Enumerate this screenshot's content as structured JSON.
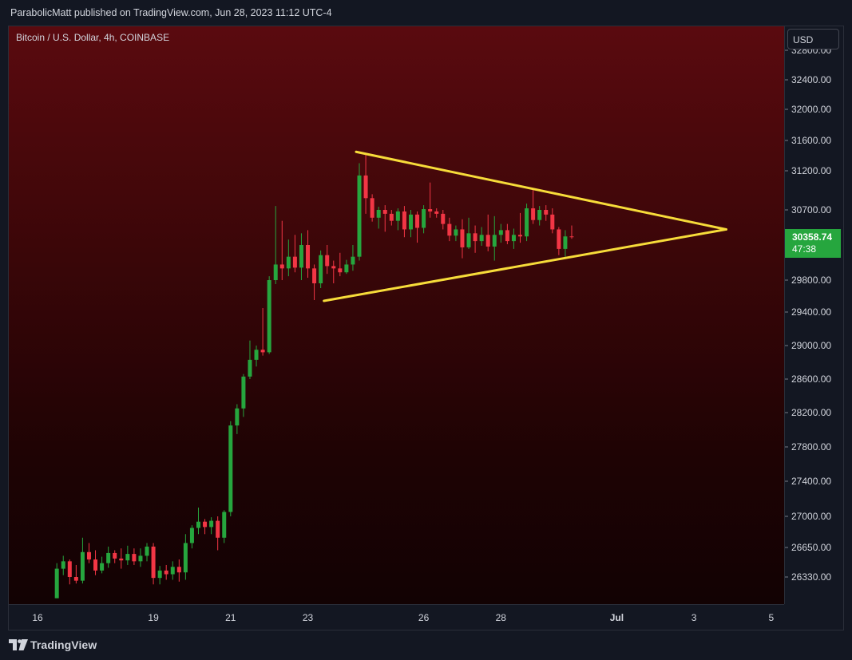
{
  "header": {
    "publish_text": "ParabolicMatt published on TradingView.com, Jun 28, 2023 11:12 UTC-4"
  },
  "chart": {
    "symbol_title": "Bitcoin / U.S. Dollar, 4h, COINBASE"
  },
  "price_axis": {
    "currency": "USD",
    "last_price": "30358.74",
    "countdown": "47:38",
    "last_price_color": "#26a63e"
  },
  "footer": {
    "brand": "TradingView",
    "logo_icon": "tradingview-logo-icon"
  },
  "colors": {
    "up": "#26a63e",
    "down": "#f23645",
    "drawing": "#f7dc3a",
    "background_top": "#5a0a0f"
  },
  "chart_data": {
    "type": "candlestick",
    "title": "Bitcoin / U.S. Dollar, 4h, COINBASE",
    "y_ticks": [
      26330,
      26650,
      27000,
      27400,
      27800,
      28200,
      28600,
      29000,
      29400,
      29800,
      30700,
      31200,
      31600,
      32000,
      32400,
      32800
    ],
    "x_ticks": [
      {
        "label": "16",
        "t": 0
      },
      {
        "label": "19",
        "t": 18
      },
      {
        "label": "21",
        "t": 30
      },
      {
        "label": "23",
        "t": 42
      },
      {
        "label": "26",
        "t": 60
      },
      {
        "label": "28",
        "t": 72
      },
      {
        "label": "Jul",
        "t": 90
      },
      {
        "label": "3",
        "t": 102
      },
      {
        "label": "5",
        "t": 114
      }
    ],
    "candles": [
      {
        "t": 3,
        "o": 26100,
        "h": 26480,
        "l": 26100,
        "c": 26420
      },
      {
        "t": 4,
        "o": 26420,
        "h": 26560,
        "l": 26350,
        "c": 26500
      },
      {
        "t": 5,
        "o": 26500,
        "h": 26520,
        "l": 26250,
        "c": 26330
      },
      {
        "t": 6,
        "o": 26330,
        "h": 26460,
        "l": 26260,
        "c": 26290
      },
      {
        "t": 7,
        "o": 26290,
        "h": 26760,
        "l": 26260,
        "c": 26600
      },
      {
        "t": 8,
        "o": 26600,
        "h": 26700,
        "l": 26480,
        "c": 26520
      },
      {
        "t": 9,
        "o": 26520,
        "h": 26620,
        "l": 26350,
        "c": 26400
      },
      {
        "t": 10,
        "o": 26400,
        "h": 26550,
        "l": 26370,
        "c": 26480
      },
      {
        "t": 11,
        "o": 26480,
        "h": 26660,
        "l": 26430,
        "c": 26590
      },
      {
        "t": 12,
        "o": 26590,
        "h": 26620,
        "l": 26480,
        "c": 26530
      },
      {
        "t": 13,
        "o": 26530,
        "h": 26640,
        "l": 26420,
        "c": 26510
      },
      {
        "t": 14,
        "o": 26510,
        "h": 26670,
        "l": 26460,
        "c": 26580
      },
      {
        "t": 15,
        "o": 26580,
        "h": 26640,
        "l": 26460,
        "c": 26500
      },
      {
        "t": 16,
        "o": 26500,
        "h": 26640,
        "l": 26440,
        "c": 26560
      },
      {
        "t": 17,
        "o": 26560,
        "h": 26700,
        "l": 26500,
        "c": 26660
      },
      {
        "t": 18,
        "o": 26660,
        "h": 26700,
        "l": 26250,
        "c": 26320
      },
      {
        "t": 19,
        "o": 26320,
        "h": 26450,
        "l": 26250,
        "c": 26400
      },
      {
        "t": 20,
        "o": 26400,
        "h": 26460,
        "l": 26300,
        "c": 26360
      },
      {
        "t": 21,
        "o": 26360,
        "h": 26500,
        "l": 26300,
        "c": 26440
      },
      {
        "t": 22,
        "o": 26440,
        "h": 26520,
        "l": 26280,
        "c": 26380
      },
      {
        "t": 23,
        "o": 26380,
        "h": 26800,
        "l": 26300,
        "c": 26700
      },
      {
        "t": 24,
        "o": 26700,
        "h": 26900,
        "l": 26640,
        "c": 26870
      },
      {
        "t": 25,
        "o": 26870,
        "h": 27100,
        "l": 26800,
        "c": 26940
      },
      {
        "t": 26,
        "o": 26940,
        "h": 26970,
        "l": 26800,
        "c": 26880
      },
      {
        "t": 27,
        "o": 26880,
        "h": 26990,
        "l": 26800,
        "c": 26950
      },
      {
        "t": 28,
        "o": 26950,
        "h": 27000,
        "l": 26620,
        "c": 26760
      },
      {
        "t": 29,
        "o": 26760,
        "h": 27070,
        "l": 26700,
        "c": 27050
      },
      {
        "t": 30,
        "o": 27050,
        "h": 28100,
        "l": 27000,
        "c": 28050
      },
      {
        "t": 31,
        "o": 28050,
        "h": 28300,
        "l": 27950,
        "c": 28250
      },
      {
        "t": 32,
        "o": 28250,
        "h": 28660,
        "l": 28150,
        "c": 28630
      },
      {
        "t": 33,
        "o": 28630,
        "h": 29060,
        "l": 28600,
        "c": 28830
      },
      {
        "t": 34,
        "o": 28830,
        "h": 29000,
        "l": 28750,
        "c": 28950
      },
      {
        "t": 35,
        "o": 28950,
        "h": 29450,
        "l": 28880,
        "c": 28920
      },
      {
        "t": 36,
        "o": 28920,
        "h": 29850,
        "l": 28900,
        "c": 29800
      },
      {
        "t": 37,
        "o": 29800,
        "h": 30750,
        "l": 29750,
        "c": 30000
      },
      {
        "t": 38,
        "o": 30000,
        "h": 30560,
        "l": 29800,
        "c": 29950
      },
      {
        "t": 39,
        "o": 29950,
        "h": 30320,
        "l": 29850,
        "c": 30100
      },
      {
        "t": 40,
        "o": 30100,
        "h": 30380,
        "l": 29900,
        "c": 29960
      },
      {
        "t": 41,
        "o": 29960,
        "h": 30400,
        "l": 29800,
        "c": 30250
      },
      {
        "t": 42,
        "o": 30250,
        "h": 30440,
        "l": 29830,
        "c": 29950
      },
      {
        "t": 43,
        "o": 29950,
        "h": 30000,
        "l": 29550,
        "c": 29760
      },
      {
        "t": 44,
        "o": 29760,
        "h": 30180,
        "l": 29700,
        "c": 30120
      },
      {
        "t": 45,
        "o": 30120,
        "h": 30250,
        "l": 29880,
        "c": 29980
      },
      {
        "t": 46,
        "o": 29980,
        "h": 30050,
        "l": 29760,
        "c": 29950
      },
      {
        "t": 47,
        "o": 29950,
        "h": 30150,
        "l": 29850,
        "c": 29900
      },
      {
        "t": 48,
        "o": 29900,
        "h": 30060,
        "l": 29880,
        "c": 30000
      },
      {
        "t": 49,
        "o": 30000,
        "h": 30250,
        "l": 29920,
        "c": 30100
      },
      {
        "t": 50,
        "o": 30100,
        "h": 31300,
        "l": 30050,
        "c": 31140
      },
      {
        "t": 51,
        "o": 31140,
        "h": 31420,
        "l": 30650,
        "c": 30850
      },
      {
        "t": 52,
        "o": 30850,
        "h": 30900,
        "l": 30550,
        "c": 30600
      },
      {
        "t": 53,
        "o": 30600,
        "h": 30740,
        "l": 30460,
        "c": 30700
      },
      {
        "t": 54,
        "o": 30700,
        "h": 30760,
        "l": 30420,
        "c": 30650
      },
      {
        "t": 55,
        "o": 30650,
        "h": 30700,
        "l": 30500,
        "c": 30560
      },
      {
        "t": 56,
        "o": 30560,
        "h": 30720,
        "l": 30440,
        "c": 30680
      },
      {
        "t": 57,
        "o": 30680,
        "h": 30750,
        "l": 30350,
        "c": 30450
      },
      {
        "t": 58,
        "o": 30450,
        "h": 30700,
        "l": 30350,
        "c": 30640
      },
      {
        "t": 59,
        "o": 30640,
        "h": 30680,
        "l": 30280,
        "c": 30470
      },
      {
        "t": 60,
        "o": 30470,
        "h": 30760,
        "l": 30400,
        "c": 30710
      },
      {
        "t": 61,
        "o": 30710,
        "h": 31050,
        "l": 30600,
        "c": 30680
      },
      {
        "t": 62,
        "o": 30680,
        "h": 30720,
        "l": 30600,
        "c": 30650
      },
      {
        "t": 63,
        "o": 30650,
        "h": 30700,
        "l": 30450,
        "c": 30520
      },
      {
        "t": 64,
        "o": 30520,
        "h": 30600,
        "l": 30300,
        "c": 30370
      },
      {
        "t": 65,
        "o": 30370,
        "h": 30500,
        "l": 30300,
        "c": 30450
      },
      {
        "t": 66,
        "o": 30450,
        "h": 30580,
        "l": 30080,
        "c": 30220
      },
      {
        "t": 67,
        "o": 30220,
        "h": 30600,
        "l": 30200,
        "c": 30400
      },
      {
        "t": 68,
        "o": 30400,
        "h": 30500,
        "l": 30150,
        "c": 30300
      },
      {
        "t": 69,
        "o": 30300,
        "h": 30480,
        "l": 30240,
        "c": 30380
      },
      {
        "t": 70,
        "o": 30380,
        "h": 30640,
        "l": 30170,
        "c": 30230
      },
      {
        "t": 71,
        "o": 30230,
        "h": 30620,
        "l": 30050,
        "c": 30380
      },
      {
        "t": 72,
        "o": 30380,
        "h": 30520,
        "l": 30280,
        "c": 30440
      },
      {
        "t": 73,
        "o": 30440,
        "h": 30520,
        "l": 30260,
        "c": 30300
      },
      {
        "t": 74,
        "o": 30300,
        "h": 30460,
        "l": 30200,
        "c": 30380
      },
      {
        "t": 75,
        "o": 30380,
        "h": 30660,
        "l": 30280,
        "c": 30360
      },
      {
        "t": 76,
        "o": 30360,
        "h": 30780,
        "l": 30300,
        "c": 30720
      },
      {
        "t": 77,
        "o": 30720,
        "h": 30960,
        "l": 30520,
        "c": 30570
      },
      {
        "t": 78,
        "o": 30570,
        "h": 30750,
        "l": 30500,
        "c": 30700
      },
      {
        "t": 79,
        "o": 30700,
        "h": 30760,
        "l": 30560,
        "c": 30640
      },
      {
        "t": 80,
        "o": 30640,
        "h": 30720,
        "l": 30400,
        "c": 30450
      },
      {
        "t": 81,
        "o": 30450,
        "h": 30480,
        "l": 30120,
        "c": 30200
      },
      {
        "t": 82,
        "o": 30200,
        "h": 30440,
        "l": 30100,
        "c": 30360
      },
      {
        "t": 83,
        "o": 30360,
        "h": 30500,
        "l": 30330,
        "c": 30359
      }
    ],
    "trendlines": [
      {
        "name": "upper",
        "from": {
          "t": 49.5,
          "p": 31450
        },
        "to": {
          "t": 107,
          "p": 30450
        }
      },
      {
        "name": "lower",
        "from": {
          "t": 44.5,
          "p": 29540
        },
        "to": {
          "t": 107,
          "p": 30450
        }
      }
    ]
  }
}
